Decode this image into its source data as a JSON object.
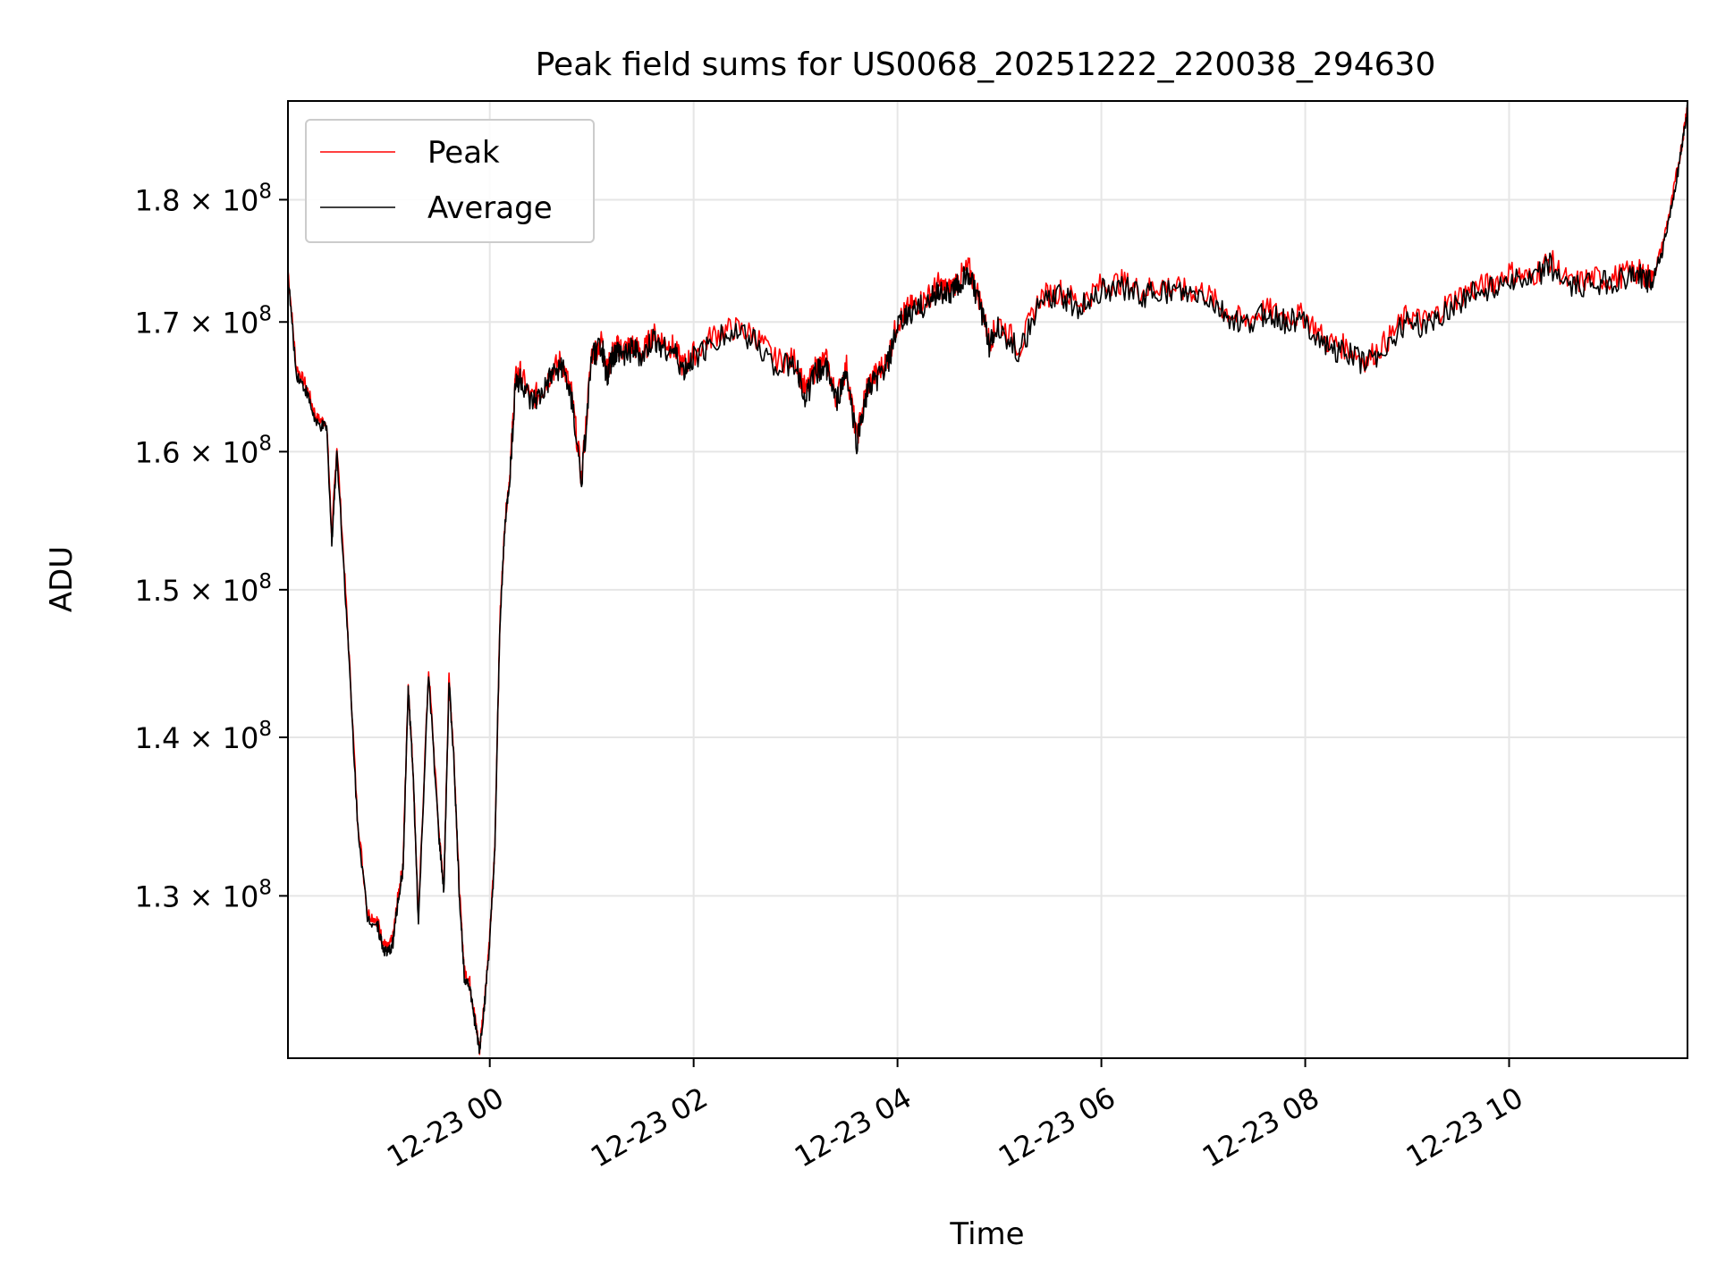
{
  "chart_data": {
    "type": "line",
    "title": "Peak field sums for US0068_20251222_220038_294630",
    "xlabel": "Time",
    "ylabel": "ADU",
    "yscale": "log",
    "grid": true,
    "legend_position": "upper-left",
    "xlim": [
      -1.98,
      11.75
    ],
    "ylim": [
      120500000,
      188500000
    ],
    "x_tick_values": [
      0,
      2,
      4,
      6,
      8,
      10
    ],
    "x_tick_labels": [
      "12-23 00",
      "12-23 02",
      "12-23 04",
      "12-23 06",
      "12-23 08",
      "12-23 10"
    ],
    "y_ticks": [
      {
        "value": 130000000,
        "mantissa": "1.3",
        "base": "× 10",
        "exp": "8"
      },
      {
        "value": 140000000,
        "mantissa": "1.4",
        "base": "× 10",
        "exp": "8"
      },
      {
        "value": 150000000,
        "mantissa": "1.5",
        "base": "× 10",
        "exp": "8"
      },
      {
        "value": 160000000,
        "mantissa": "1.6",
        "base": "× 10",
        "exp": "8"
      },
      {
        "value": 170000000,
        "mantissa": "1.7",
        "base": "× 10",
        "exp": "8"
      },
      {
        "value": 180000000,
        "mantissa": "1.8",
        "base": "× 10",
        "exp": "8"
      }
    ],
    "series": [
      {
        "name": "Peak",
        "color": "#ff0000",
        "x": [
          -1.98,
          -1.9,
          -1.8,
          -1.7,
          -1.6,
          -1.55,
          -1.5,
          -1.4,
          -1.3,
          -1.2,
          -1.1,
          -1.05,
          -1.0,
          -0.95,
          -0.9,
          -0.85,
          -0.8,
          -0.75,
          -0.7,
          -0.6,
          -0.5,
          -0.45,
          -0.4,
          -0.35,
          -0.3,
          -0.25,
          -0.2,
          -0.15,
          -0.1,
          -0.05,
          0.0,
          0.05,
          0.1,
          0.15,
          0.2,
          0.25,
          0.3,
          0.4,
          0.5,
          0.6,
          0.7,
          0.8,
          0.9,
          1.0,
          1.1,
          1.15,
          1.2,
          1.25,
          1.3,
          1.4,
          1.5,
          1.6,
          1.7,
          1.8,
          1.9,
          2.0,
          2.2,
          2.4,
          2.6,
          2.8,
          3.0,
          3.1,
          3.2,
          3.3,
          3.4,
          3.5,
          3.6,
          3.7,
          3.8,
          3.9,
          4.0,
          4.1,
          4.2,
          4.3,
          4.4,
          4.5,
          4.6,
          4.7,
          4.8,
          4.9,
          5.0,
          5.2,
          5.4,
          5.6,
          5.8,
          6.0,
          6.2,
          6.4,
          6.6,
          6.8,
          7.0,
          7.2,
          7.4,
          7.6,
          7.8,
          8.0,
          8.2,
          8.4,
          8.6,
          8.8,
          9.0,
          9.2,
          9.4,
          9.6,
          9.8,
          10.0,
          10.2,
          10.4,
          10.6,
          10.8,
          11.0,
          11.2,
          11.3,
          11.4,
          11.5,
          11.6,
          11.7,
          11.75
        ],
        "values": [
          174200000,
          166500000,
          165000000,
          162500000,
          162200000,
          153700000,
          160500000,
          148000000,
          135000000,
          129000000,
          128500000,
          127200000,
          126800000,
          127500000,
          130000000,
          132000000,
          143500000,
          137500000,
          128500000,
          144500000,
          134000000,
          130500000,
          144000000,
          138500000,
          130500000,
          125500000,
          125000000,
          123000000,
          121000000,
          124000000,
          127500000,
          133000000,
          148000000,
          155000000,
          158500000,
          165500000,
          166000000,
          164000000,
          164500000,
          166000000,
          167000000,
          164500000,
          158000000,
          167500000,
          168500000,
          166000000,
          167500000,
          168000000,
          167800000,
          168200000,
          167500000,
          169000000,
          168500000,
          168000000,
          166500000,
          167500000,
          169000000,
          169500000,
          169000000,
          167000000,
          167000000,
          164500000,
          166500000,
          167000000,
          164000000,
          166500000,
          161000000,
          165000000,
          166000000,
          167000000,
          170000000,
          171000000,
          171500000,
          172000000,
          173000000,
          172500000,
          173500000,
          174300000,
          172000000,
          168500000,
          170000000,
          168000000,
          172000000,
          172500000,
          171500000,
          173000000,
          173200000,
          172500000,
          173000000,
          172500000,
          172500000,
          171000000,
          170000000,
          171000000,
          170500000,
          170500000,
          168500000,
          168000000,
          167000000,
          168500000,
          170500000,
          170000000,
          171500000,
          172500000,
          173000000,
          174000000,
          173500000,
          175000000,
          173000000,
          173500000,
          173500000,
          174000000,
          174000000,
          173500000,
          176000000,
          180000000,
          185000000,
          188300000
        ]
      },
      {
        "name": "Average",
        "color": "#000000",
        "x": [
          -1.98,
          -1.9,
          -1.8,
          -1.7,
          -1.6,
          -1.55,
          -1.5,
          -1.4,
          -1.3,
          -1.2,
          -1.1,
          -1.05,
          -1.0,
          -0.95,
          -0.9,
          -0.85,
          -0.8,
          -0.75,
          -0.7,
          -0.6,
          -0.5,
          -0.45,
          -0.4,
          -0.35,
          -0.3,
          -0.25,
          -0.2,
          -0.15,
          -0.1,
          -0.05,
          0.0,
          0.05,
          0.1,
          0.15,
          0.2,
          0.25,
          0.3,
          0.4,
          0.5,
          0.6,
          0.7,
          0.8,
          0.9,
          1.0,
          1.1,
          1.15,
          1.2,
          1.25,
          1.3,
          1.4,
          1.5,
          1.6,
          1.7,
          1.8,
          1.9,
          2.0,
          2.2,
          2.4,
          2.6,
          2.8,
          3.0,
          3.1,
          3.2,
          3.3,
          3.4,
          3.5,
          3.6,
          3.7,
          3.8,
          3.9,
          4.0,
          4.1,
          4.2,
          4.3,
          4.4,
          4.5,
          4.6,
          4.7,
          4.8,
          4.9,
          5.0,
          5.2,
          5.4,
          5.6,
          5.8,
          6.0,
          6.2,
          6.4,
          6.6,
          6.8,
          7.0,
          7.2,
          7.4,
          7.6,
          7.8,
          8.0,
          8.2,
          8.4,
          8.6,
          8.8,
          9.0,
          9.2,
          9.4,
          9.6,
          9.8,
          10.0,
          10.2,
          10.4,
          10.6,
          10.8,
          11.0,
          11.2,
          11.3,
          11.4,
          11.5,
          11.6,
          11.7,
          11.75
        ],
        "values": [
          173800000,
          166000000,
          164600000,
          162000000,
          161800000,
          153300000,
          160000000,
          147600000,
          134700000,
          128700000,
          128200000,
          126900000,
          126500000,
          127200000,
          129700000,
          131700000,
          143200000,
          137200000,
          128200000,
          144100000,
          133700000,
          130200000,
          143700000,
          138200000,
          130200000,
          125200000,
          124700000,
          122700000,
          120900000,
          123700000,
          127200000,
          132700000,
          147700000,
          154700000,
          158200000,
          165100000,
          165600000,
          163600000,
          164100000,
          165600000,
          166600000,
          164100000,
          157600000,
          167100000,
          168100000,
          165600000,
          167100000,
          167600000,
          167400000,
          167800000,
          167100000,
          168600000,
          168100000,
          167600000,
          166100000,
          167100000,
          168600000,
          169100000,
          168600000,
          166600000,
          166600000,
          164100000,
          166100000,
          166600000,
          163600000,
          166100000,
          160600000,
          164600000,
          165600000,
          166600000,
          169600000,
          170600000,
          171100000,
          171600000,
          172600000,
          172100000,
          173100000,
          173900000,
          171600000,
          168100000,
          169600000,
          167600000,
          171600000,
          172100000,
          171100000,
          172600000,
          172800000,
          172100000,
          172600000,
          172100000,
          172100000,
          170600000,
          169600000,
          170600000,
          170100000,
          170100000,
          168100000,
          167600000,
          166600000,
          168100000,
          170100000,
          169600000,
          171100000,
          172100000,
          172600000,
          173600000,
          173100000,
          174600000,
          172600000,
          173100000,
          173100000,
          173600000,
          173600000,
          173100000,
          175600000,
          179600000,
          184600000,
          187900000
        ]
      }
    ],
    "legend": [
      "Peak",
      "Average"
    ]
  }
}
